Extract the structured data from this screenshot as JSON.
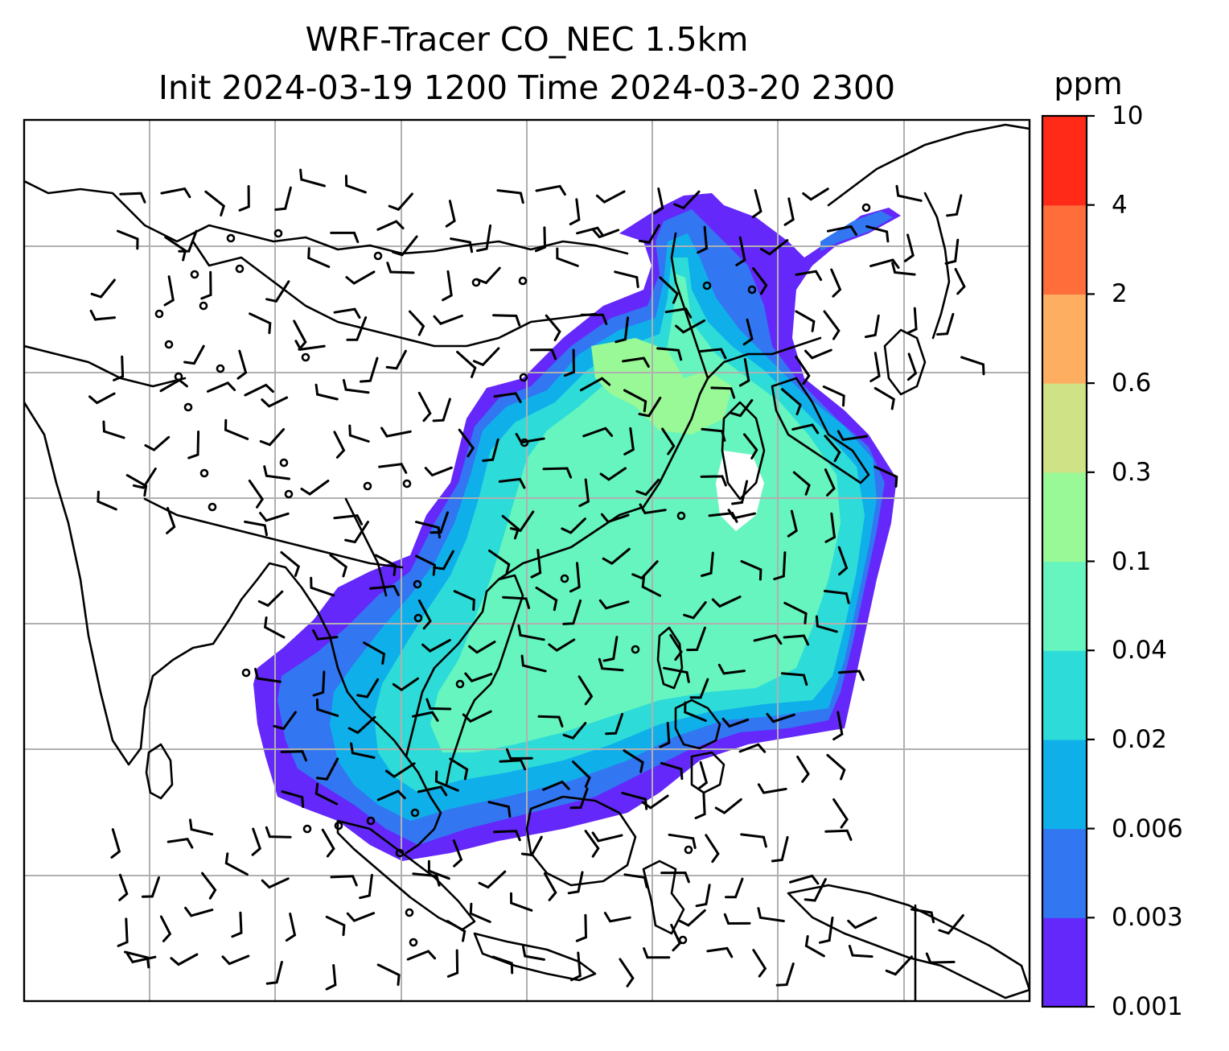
{
  "title": {
    "line1": "WRF-Tracer CO_NEC 1.5km",
    "line2": "Init 2024-03-19 1200 Time 2024-03-20 2300"
  },
  "colorbar": {
    "unit": "ppm",
    "levels": [
      "0.001",
      "0.003",
      "0.006",
      "0.02",
      "0.04",
      "0.1",
      "0.3",
      "0.6",
      "2",
      "4",
      "10"
    ],
    "colors": [
      "#6428fa",
      "#3276f2",
      "#0fb0ea",
      "#2ddcd8",
      "#66f5bf",
      "#98f996",
      "#cfe285",
      "#fdae61",
      "#ff6d3b",
      "#ff2a18"
    ]
  },
  "map": {
    "grid": "on",
    "frame_color": "#000000",
    "grid_color": "#b0b0b0",
    "coastline_color": "#000000",
    "barb_color": "#000000"
  }
}
